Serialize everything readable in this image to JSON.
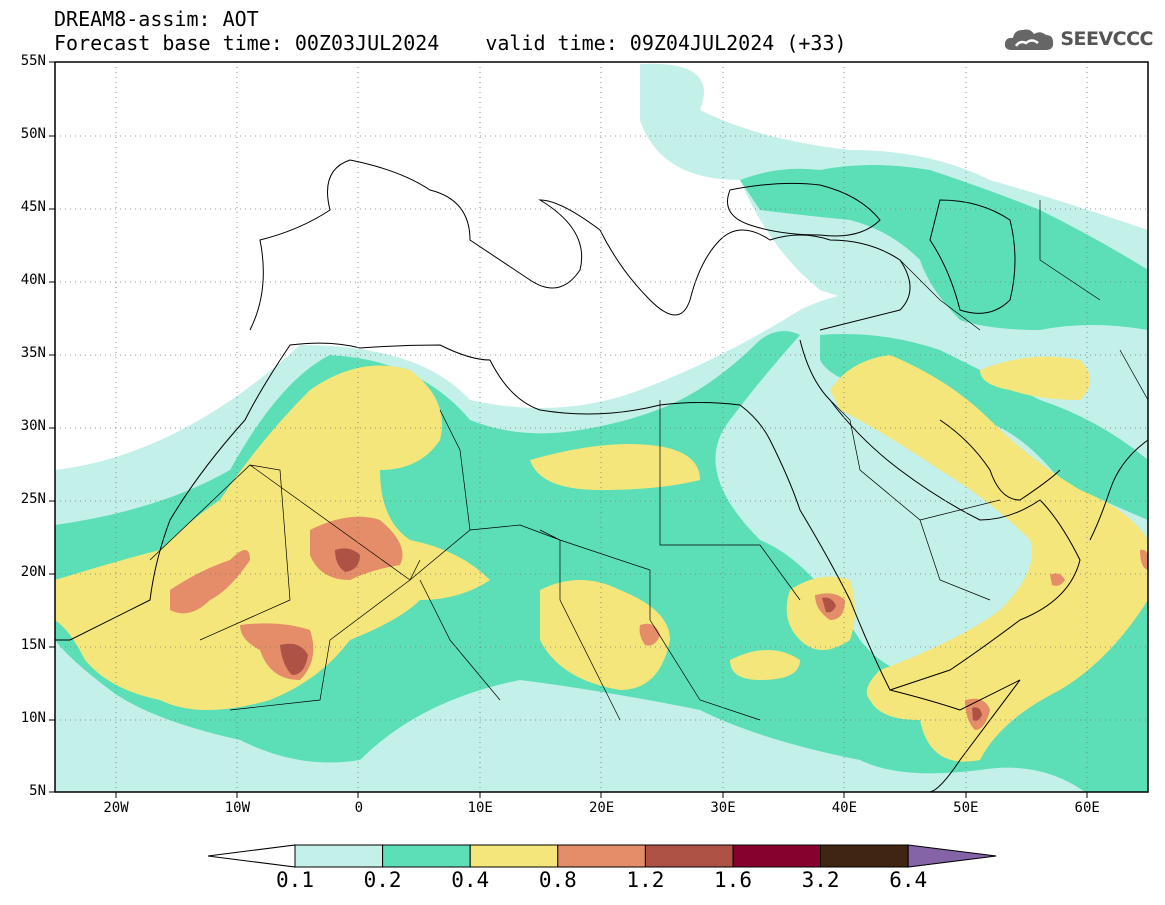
{
  "header": {
    "title": "DREAM8-assim: AOT",
    "base_time": "Forecast base time: 00Z03JUL2024",
    "valid_time": "valid time: 09Z04JUL2024 (+33)"
  },
  "logo": {
    "text": "SEEVCCC",
    "icon": "cloud-icon"
  },
  "map": {
    "domain": {
      "lon": [
        -25,
        65
      ],
      "lat": [
        5,
        55
      ]
    },
    "y_labels": [
      "55N",
      "50N",
      "45N",
      "40N",
      "35N",
      "30N",
      "25N",
      "20N",
      "15N",
      "10N",
      "5N"
    ],
    "x_labels": [
      "20W",
      "10W",
      "0",
      "10E",
      "20E",
      "30E",
      "40E",
      "50E",
      "60E"
    ],
    "grid": "dotted"
  },
  "colorbar": {
    "colors": [
      "#ffffff",
      "#c4f0ea",
      "#5cdfb6",
      "#f4e67a",
      "#e48d68",
      "#ad5244",
      "#86012e",
      "#402512",
      "#8463a7"
    ],
    "labels": [
      "0.1",
      "0.2",
      "0.4",
      "0.8",
      "1.2",
      "1.6",
      "3.2",
      "6.4"
    ]
  }
}
